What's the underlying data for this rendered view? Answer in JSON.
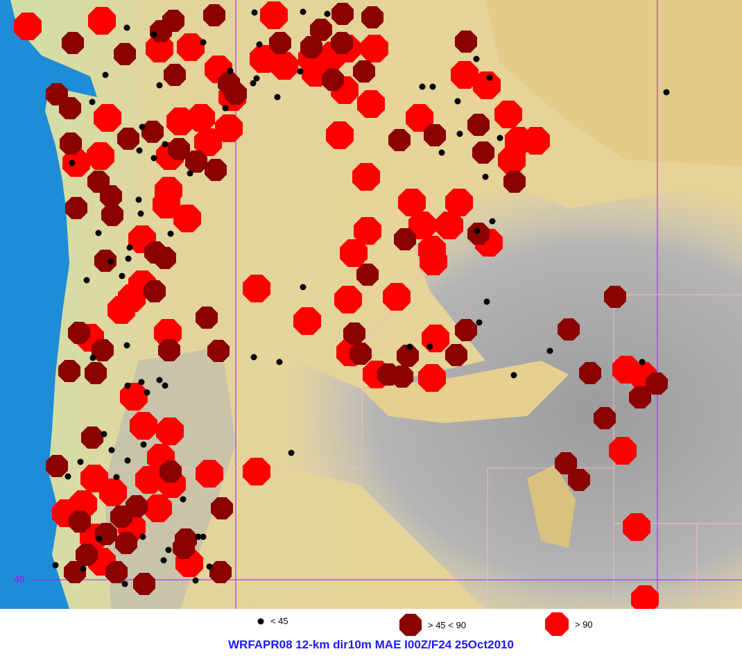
{
  "title": "WRFAPR08 12-km dir10m MAE I00Z/F24 25Oct2010",
  "latitude_label": "40",
  "legend": [
    {
      "label": "< 45",
      "symbol": "black-dot",
      "color": "#000000"
    },
    {
      "label": "> 45 < 90",
      "symbol": "dark-red-octagon",
      "color": "#8b0000"
    },
    {
      "label": "> 90",
      "symbol": "red-octagon",
      "color": "#ff0000"
    }
  ],
  "colors": {
    "ocean": "#1e8cd6",
    "lowland": "#e8d396",
    "terrain": "#a8a8a8",
    "gridline": "#a020f0"
  }
}
